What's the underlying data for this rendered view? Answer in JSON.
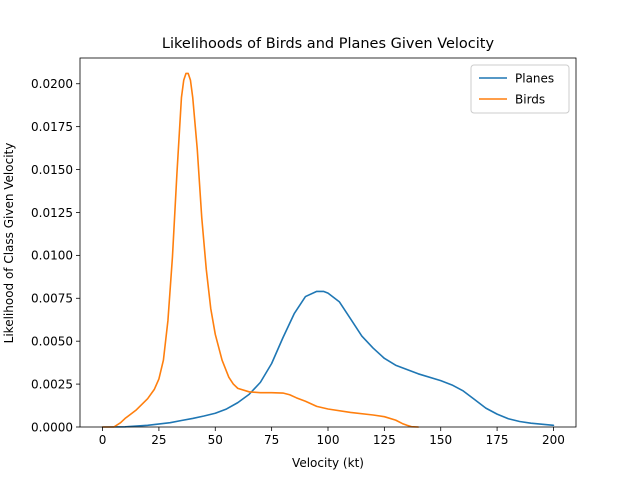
{
  "chart_data": {
    "type": "line",
    "title": "Likelihoods of Birds and Planes Given Velocity",
    "xlabel": "Velocity (kt)",
    "ylabel": "Likelihood of Class Given Velocity",
    "xlim": [
      -10,
      210
    ],
    "ylim": [
      0,
      0.0215
    ],
    "xticks": [
      0,
      25,
      50,
      75,
      100,
      125,
      150,
      175,
      200
    ],
    "xtick_labels": [
      "0",
      "25",
      "50",
      "75",
      "100",
      "125",
      "150",
      "175",
      "200"
    ],
    "yticks": [
      0,
      0.0025,
      0.005,
      0.0075,
      0.01,
      0.0125,
      0.015,
      0.0175,
      0.02
    ],
    "ytick_labels": [
      "0.0000",
      "0.0025",
      "0.0050",
      "0.0075",
      "0.0100",
      "0.0125",
      "0.0150",
      "0.0175",
      "0.0200"
    ],
    "grid": false,
    "legend_position": "top-right",
    "series": [
      {
        "name": "Planes",
        "color": "#1f77b4",
        "x": [
          0,
          10,
          20,
          30,
          35,
          40,
          45,
          50,
          55,
          60,
          65,
          70,
          75,
          80,
          85,
          90,
          95,
          98,
          100,
          105,
          110,
          115,
          120,
          125,
          130,
          140,
          150,
          155,
          160,
          165,
          170,
          175,
          180,
          185,
          190,
          200
        ],
        "y": [
          0,
          1e-05,
          0.0001,
          0.00025,
          0.00038,
          0.0005,
          0.00064,
          0.0008,
          0.00105,
          0.00142,
          0.0019,
          0.0026,
          0.0037,
          0.0052,
          0.0066,
          0.0076,
          0.0079,
          0.0079,
          0.0078,
          0.0073,
          0.0063,
          0.0053,
          0.0046,
          0.004,
          0.0036,
          0.0031,
          0.0027,
          0.00245,
          0.0021,
          0.0016,
          0.0011,
          0.00075,
          0.00048,
          0.00032,
          0.00022,
          0.0001
        ]
      },
      {
        "name": "Birds",
        "color": "#ff7f0e",
        "x": [
          0,
          3,
          5,
          8,
          10,
          15,
          20,
          23,
          25,
          27,
          29,
          31,
          33,
          35,
          36,
          37,
          38,
          39,
          40,
          42,
          44,
          46,
          48,
          50,
          53,
          56,
          58,
          60,
          65,
          70,
          75,
          80,
          83,
          86,
          90,
          95,
          100,
          110,
          120,
          125,
          130,
          133,
          135,
          137,
          140
        ],
        "y": [
          0,
          0,
          0,
          0.00025,
          0.0005,
          0.001,
          0.00165,
          0.0022,
          0.0028,
          0.0039,
          0.0062,
          0.0099,
          0.0148,
          0.0192,
          0.0202,
          0.0206,
          0.0206,
          0.0202,
          0.0192,
          0.0162,
          0.0122,
          0.0092,
          0.0069,
          0.0054,
          0.0039,
          0.0029,
          0.0025,
          0.00225,
          0.00205,
          0.002,
          0.002,
          0.00198,
          0.00188,
          0.0017,
          0.0015,
          0.0012,
          0.00105,
          0.00085,
          0.0007,
          0.0006,
          0.0004,
          0.0002,
          0.0001,
          2e-05,
          0
        ]
      }
    ]
  }
}
